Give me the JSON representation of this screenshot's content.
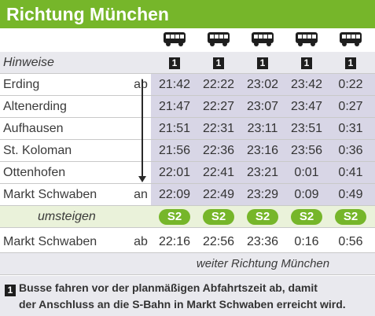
{
  "title": "Richtung München",
  "columns": [
    {
      "icon": "bus-icon",
      "note": "1"
    },
    {
      "icon": "bus-icon",
      "note": "1"
    },
    {
      "icon": "bus-icon",
      "note": "1"
    },
    {
      "icon": "bus-icon",
      "note": "1"
    },
    {
      "icon": "bus-icon",
      "note": "1"
    }
  ],
  "hints_label": "Hinweise",
  "stops": [
    {
      "name": "Erding",
      "ab": "ab",
      "times": [
        "21:42",
        "22:22",
        "23:02",
        "23:42",
        "0:22"
      ]
    },
    {
      "name": "Altenerding",
      "ab": "",
      "times": [
        "21:47",
        "22:27",
        "23:07",
        "23:47",
        "0:27"
      ]
    },
    {
      "name": "Aufhausen",
      "ab": "",
      "times": [
        "21:51",
        "22:31",
        "23:11",
        "23:51",
        "0:31"
      ]
    },
    {
      "name": "St. Koloman",
      "ab": "",
      "times": [
        "21:56",
        "22:36",
        "23:16",
        "23:56",
        "0:36"
      ]
    },
    {
      "name": "Ottenhofen",
      "ab": "",
      "times": [
        "22:01",
        "22:41",
        "23:21",
        "0:01",
        "0:41"
      ]
    },
    {
      "name": "Markt Schwaben",
      "ab": "an",
      "times": [
        "22:09",
        "22:49",
        "23:29",
        "0:09",
        "0:49"
      ]
    }
  ],
  "transfer": {
    "label": "umsteigen",
    "badges": [
      "S2",
      "S2",
      "S2",
      "S2",
      "S2"
    ]
  },
  "departure": {
    "name": "Markt Schwaben",
    "ab": "ab",
    "times": [
      "22:16",
      "22:56",
      "23:36",
      "0:16",
      "0:56"
    ]
  },
  "continue_label": "weiter Richtung München",
  "footnote": {
    "marker": "1",
    "line1": "Busse fahren vor der planmäßigen Abfahrtszeit ab, damit",
    "line2": "der Anschluss an die S-Bahn in Markt Schwaben erreicht wird."
  },
  "colors": {
    "green": "#76b62a",
    "shade": "#e9e9ee",
    "colshade": "#d8d6e6"
  }
}
